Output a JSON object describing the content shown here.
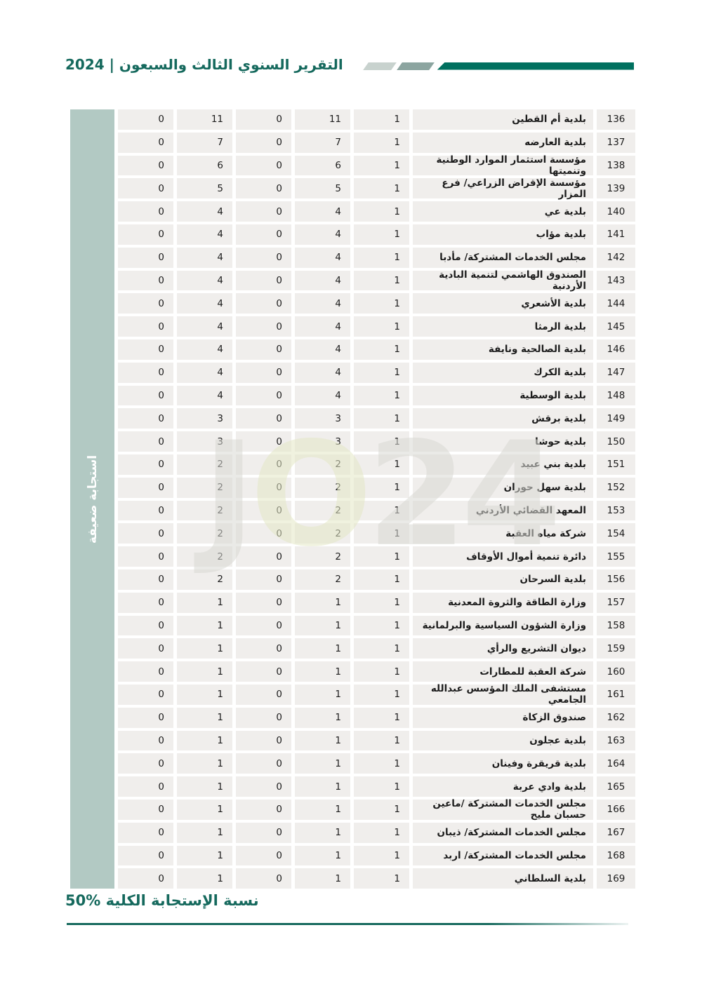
{
  "header": {
    "title": "التقرير السنوي الثالث والسبعون | 2024"
  },
  "sidebar": {
    "label": "استجابة ضعيفة"
  },
  "watermark": {
    "j": "J",
    "o": "O",
    "tail": "24"
  },
  "footer": {
    "text": "نسبة الإستجابة الكلية %50"
  },
  "colors": {
    "teal": "#15695d",
    "bar_dark": "#00705f",
    "bar_mid": "#8ca5a0",
    "bar_light": "#c8d2ce",
    "sidebar": "#b2c9c3",
    "cell": "#f0eeec",
    "text": "#1c1c1c",
    "wm_gray": "#d9d9d4",
    "wm_green": "#e4e8c6"
  },
  "table": {
    "rows": [
      {
        "no": "136",
        "name": "بلدية أم القطين",
        "values": [
          "1",
          "11",
          "0",
          "11",
          "0"
        ]
      },
      {
        "no": "137",
        "name": "بلدية العارضه",
        "values": [
          "1",
          "7",
          "0",
          "7",
          "0"
        ]
      },
      {
        "no": "138",
        "name": "مؤسسة استثمار الموارد الوطنية وتنميتها",
        "values": [
          "1",
          "6",
          "0",
          "6",
          "0"
        ]
      },
      {
        "no": "139",
        "name": "مؤسسة الإقراض الزراعي/ فرع المزار",
        "values": [
          "1",
          "5",
          "0",
          "5",
          "0"
        ]
      },
      {
        "no": "140",
        "name": "بلدية عي",
        "values": [
          "1",
          "4",
          "0",
          "4",
          "0"
        ]
      },
      {
        "no": "141",
        "name": "بلدية مؤاب",
        "values": [
          "1",
          "4",
          "0",
          "4",
          "0"
        ]
      },
      {
        "no": "142",
        "name": "مجلس الخدمات المشتركة/ مأدبا",
        "values": [
          "1",
          "4",
          "0",
          "4",
          "0"
        ]
      },
      {
        "no": "143",
        "name": "الصندوق الهاشمي لتنمية البادية الأردنية",
        "values": [
          "1",
          "4",
          "0",
          "4",
          "0"
        ]
      },
      {
        "no": "144",
        "name": "بلدية الأشعري",
        "values": [
          "1",
          "4",
          "0",
          "4",
          "0"
        ]
      },
      {
        "no": "145",
        "name": "بلدية الرمثا",
        "values": [
          "1",
          "4",
          "0",
          "4",
          "0"
        ]
      },
      {
        "no": "146",
        "name": "بلدية الصالحية ونايفة",
        "values": [
          "1",
          "4",
          "0",
          "4",
          "0"
        ]
      },
      {
        "no": "147",
        "name": "بلدية الكرك",
        "values": [
          "1",
          "4",
          "0",
          "4",
          "0"
        ]
      },
      {
        "no": "148",
        "name": "بلدية الوسطية",
        "values": [
          "1",
          "4",
          "0",
          "4",
          "0"
        ]
      },
      {
        "no": "149",
        "name": "بلدية برقش",
        "values": [
          "1",
          "3",
          "0",
          "3",
          "0"
        ]
      },
      {
        "no": "150",
        "name": "بلدية حوشا",
        "values": [
          "1",
          "3",
          "0",
          "3",
          "0"
        ]
      },
      {
        "no": "151",
        "name": "بلدية بني عبيد",
        "values": [
          "1",
          "2",
          "0",
          "2",
          "0"
        ]
      },
      {
        "no": "152",
        "name": "بلدية سهل حوران",
        "values": [
          "1",
          "2",
          "0",
          "2",
          "0"
        ]
      },
      {
        "no": "153",
        "name": "المعهد القضائي الأردني",
        "values": [
          "1",
          "2",
          "0",
          "2",
          "0"
        ]
      },
      {
        "no": "154",
        "name": "شركة مياه العقبة",
        "values": [
          "1",
          "2",
          "0",
          "2",
          "0"
        ]
      },
      {
        "no": "155",
        "name": "دائرة تنمية أموال الأوقاف",
        "values": [
          "1",
          "2",
          "0",
          "2",
          "0"
        ]
      },
      {
        "no": "156",
        "name": "بلدية السرحان",
        "values": [
          "1",
          "2",
          "0",
          "2",
          "0"
        ]
      },
      {
        "no": "157",
        "name": "وزارة الطاقة والثروة المعدنية",
        "values": [
          "1",
          "1",
          "0",
          "1",
          "0"
        ]
      },
      {
        "no": "158",
        "name": "وزارة الشؤون السياسية والبرلمانية",
        "values": [
          "1",
          "1",
          "0",
          "1",
          "0"
        ]
      },
      {
        "no": "159",
        "name": "ديوان التشريع والرأي",
        "values": [
          "1",
          "1",
          "0",
          "1",
          "0"
        ]
      },
      {
        "no": "160",
        "name": "شركة العقبة للمطارات",
        "values": [
          "1",
          "1",
          "0",
          "1",
          "0"
        ]
      },
      {
        "no": "161",
        "name": "مستشفى الملك المؤسس عبدالله الجامعي",
        "values": [
          "1",
          "1",
          "0",
          "1",
          "0"
        ]
      },
      {
        "no": "162",
        "name": "صندوق الزكاة",
        "values": [
          "1",
          "1",
          "0",
          "1",
          "0"
        ]
      },
      {
        "no": "163",
        "name": "بلدية عجلون",
        "values": [
          "1",
          "1",
          "0",
          "1",
          "0"
        ]
      },
      {
        "no": "164",
        "name": "بلدية قريقرة وفينان",
        "values": [
          "1",
          "1",
          "0",
          "1",
          "0"
        ]
      },
      {
        "no": "165",
        "name": "بلدية وادي عربة",
        "values": [
          "1",
          "1",
          "0",
          "1",
          "0"
        ]
      },
      {
        "no": "166",
        "name": "مجلس الخدمات المشتركة /ماعين حسبان مليح",
        "values": [
          "1",
          "1",
          "0",
          "1",
          "0"
        ]
      },
      {
        "no": "167",
        "name": "مجلس الخدمات المشتركة/ ذيبان",
        "values": [
          "1",
          "1",
          "0",
          "1",
          "0"
        ]
      },
      {
        "no": "168",
        "name": "مجلس الخدمات المشتركة/ اربد",
        "values": [
          "1",
          "1",
          "0",
          "1",
          "0"
        ]
      },
      {
        "no": "169",
        "name": "بلدية السلطاني",
        "values": [
          "1",
          "1",
          "0",
          "1",
          "0"
        ]
      }
    ]
  }
}
